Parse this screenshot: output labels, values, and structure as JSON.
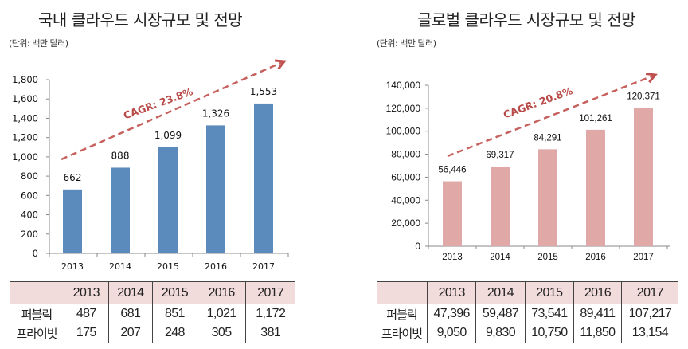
{
  "chart_data": [
    {
      "type": "bar",
      "title": "국내 클라우드 시장규모 및 전망",
      "unit_note": "(단위: 백만 달러)",
      "categories": [
        "2013",
        "2014",
        "2015",
        "2016",
        "2017"
      ],
      "values": [
        662,
        888,
        1099,
        1326,
        1553
      ],
      "value_labels": [
        "662",
        "888",
        "1,099",
        "1,326",
        "1,553"
      ],
      "ylim": [
        0,
        1800
      ],
      "yticks": [
        0,
        200,
        400,
        600,
        800,
        1000,
        1200,
        1400,
        1600,
        1800
      ],
      "ytick_labels": [
        "0",
        "200",
        "400",
        "600",
        "800",
        "1,000",
        "1,200",
        "1,400",
        "1,600",
        "1,800"
      ],
      "annotation": "CAGR: 23.8%",
      "bar_color": "#5b8bbd",
      "arrow_color": "#c0504d",
      "grid": false,
      "table": {
        "header": [
          "",
          "2013",
          "2014",
          "2015",
          "2016",
          "2017"
        ],
        "rows": [
          {
            "label": "퍼블릭",
            "values": [
              "487",
              "681",
              "851",
              "1,021",
              "1,172"
            ]
          },
          {
            "label": "프라이빗",
            "values": [
              "175",
              "207",
              "248",
              "305",
              "381"
            ]
          }
        ]
      }
    },
    {
      "type": "bar",
      "title": "글로벌 클라우드 시장규모 및 전망",
      "unit_note": "(단위: 백만 달러)",
      "categories": [
        "2013",
        "2014",
        "2015",
        "2016",
        "2017"
      ],
      "values": [
        56446,
        69317,
        84291,
        101261,
        120371
      ],
      "value_labels": [
        "56,446",
        "69,317",
        "84,291",
        "101,261",
        "120,371"
      ],
      "ylim": [
        0,
        140000
      ],
      "yticks": [
        0,
        20000,
        40000,
        60000,
        80000,
        100000,
        120000,
        140000
      ],
      "ytick_labels": [
        "0",
        "20,000",
        "40,000",
        "60,000",
        "80,000",
        "100,000",
        "120,000",
        "140,000"
      ],
      "annotation": "CAGR: 20.8%",
      "bar_color": "#e0a8a6",
      "arrow_color": "#c0504d",
      "grid": false,
      "table": {
        "header": [
          "",
          "2013",
          "2014",
          "2015",
          "2016",
          "2017"
        ],
        "rows": [
          {
            "label": "퍼블릭",
            "values": [
              "47,396",
              "59,487",
              "73,541",
              "89,411",
              "107,217"
            ]
          },
          {
            "label": "프라이빗",
            "values": [
              "9,050",
              "9,830",
              "10,750",
              "11,850",
              "13,154"
            ]
          }
        ]
      }
    }
  ]
}
